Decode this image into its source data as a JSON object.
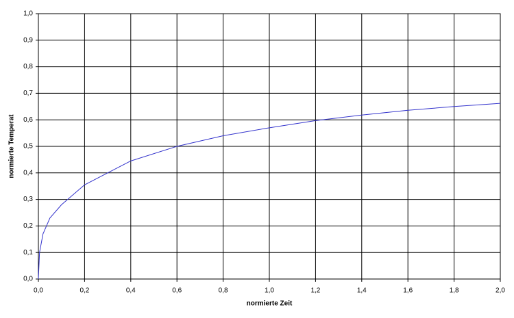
{
  "chart_data": {
    "type": "line",
    "x_label": "normierte Zeit",
    "y_label": "normierte Temperat",
    "x": [
      0,
      0.005,
      0.02,
      0.05,
      0.1,
      0.2,
      0.3,
      0.4,
      0.6,
      0.8,
      1.0,
      1.2,
      1.4,
      1.6,
      1.8,
      2.0
    ],
    "values": [
      0,
      0.1,
      0.17,
      0.23,
      0.28,
      0.355,
      0.4,
      0.445,
      0.5,
      0.54,
      0.57,
      0.597,
      0.618,
      0.636,
      0.65,
      0.662
    ],
    "color": "#3333cc",
    "xlim": [
      0,
      2.0
    ],
    "xticks": [
      {
        "value": 0,
        "label": "0,0"
      },
      {
        "value": 0.2,
        "label": "0,2"
      },
      {
        "value": 0.4,
        "label": "0,4"
      },
      {
        "value": 0.6,
        "label": "0,6"
      },
      {
        "value": 0.8,
        "label": "0,8"
      },
      {
        "value": 1.0,
        "label": "1,0"
      },
      {
        "value": 1.2,
        "label": "1,2"
      },
      {
        "value": 1.4,
        "label": "1,4"
      },
      {
        "value": 1.6,
        "label": "1,6"
      },
      {
        "value": 1.8,
        "label": "1,8"
      },
      {
        "value": 2.0,
        "label": "2,0"
      }
    ],
    "ylim": [
      0,
      1.0
    ],
    "yticks": [
      {
        "value": 0,
        "label": "0,0"
      },
      {
        "value": 0.1,
        "label": "0,1"
      },
      {
        "value": 0.2,
        "label": "0,2"
      },
      {
        "value": 0.3,
        "label": "0,3"
      },
      {
        "value": 0.4,
        "label": "0,4"
      },
      {
        "value": 0.5,
        "label": "0,5"
      },
      {
        "value": 0.6,
        "label": "0,6"
      },
      {
        "value": 0.7,
        "label": "0,7"
      },
      {
        "value": 0.8,
        "label": "0,8"
      },
      {
        "value": 0.9,
        "label": "0,9"
      },
      {
        "value": 1.0,
        "label": "1,0"
      }
    ],
    "grid": true
  }
}
